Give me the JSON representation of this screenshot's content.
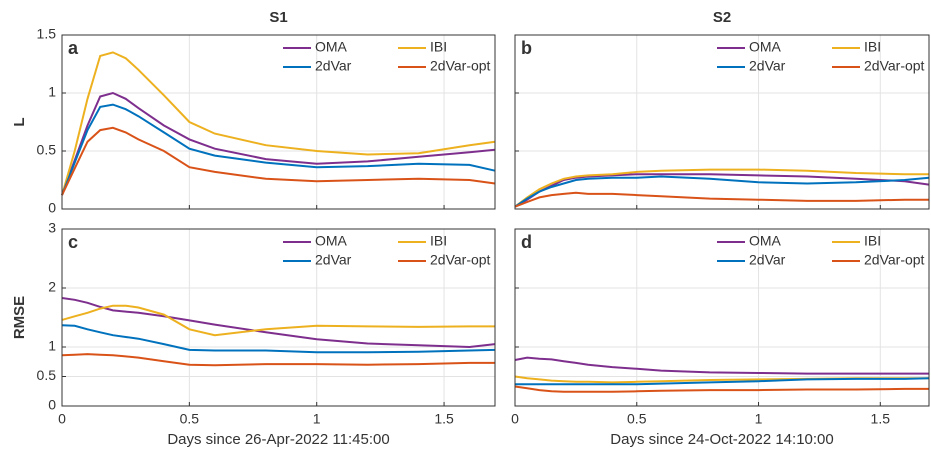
{
  "chart_data": [
    {
      "type": "line",
      "title": "S1",
      "panel_label": "a",
      "ylabel": "L",
      "x": [
        0,
        0.05,
        0.1,
        0.15,
        0.2,
        0.25,
        0.3,
        0.4,
        0.5,
        0.6,
        0.8,
        1.0,
        1.2,
        1.4,
        1.6,
        1.7
      ],
      "series": [
        {
          "name": "OMA",
          "color": "#7E2F8E",
          "values": [
            0.12,
            0.42,
            0.72,
            0.97,
            1.0,
            0.95,
            0.87,
            0.72,
            0.6,
            0.52,
            0.43,
            0.39,
            0.41,
            0.45,
            0.49,
            0.51
          ]
        },
        {
          "name": "IBI",
          "color": "#EDB120",
          "values": [
            0.12,
            0.5,
            0.95,
            1.32,
            1.35,
            1.3,
            1.2,
            0.98,
            0.75,
            0.65,
            0.55,
            0.5,
            0.47,
            0.48,
            0.55,
            0.58
          ]
        },
        {
          "name": "2dVar",
          "color": "#0072BD",
          "values": [
            0.12,
            0.4,
            0.68,
            0.88,
            0.9,
            0.86,
            0.8,
            0.66,
            0.52,
            0.46,
            0.4,
            0.36,
            0.37,
            0.39,
            0.38,
            0.33
          ]
        },
        {
          "name": "2dVar-opt",
          "color": "#D95319",
          "values": [
            0.12,
            0.35,
            0.58,
            0.68,
            0.7,
            0.66,
            0.6,
            0.5,
            0.36,
            0.32,
            0.26,
            0.24,
            0.25,
            0.26,
            0.25,
            0.22
          ]
        }
      ],
      "xlim": [
        0,
        1.7
      ],
      "ylim": [
        0,
        1.5
      ],
      "xticks": [
        0,
        0.5,
        1,
        1.5
      ],
      "yticks": [
        0,
        0.5,
        1,
        1.5
      ],
      "grid": true,
      "legend": "upper right",
      "show_xtick_labels": false,
      "show_ytick_labels": true
    },
    {
      "type": "line",
      "title": "S2",
      "panel_label": "b",
      "x": [
        0,
        0.05,
        0.1,
        0.15,
        0.2,
        0.25,
        0.3,
        0.4,
        0.5,
        0.6,
        0.8,
        1.0,
        1.2,
        1.4,
        1.6,
        1.7
      ],
      "series": [
        {
          "name": "OMA",
          "color": "#7E2F8E",
          "values": [
            0.02,
            0.08,
            0.15,
            0.2,
            0.25,
            0.27,
            0.28,
            0.29,
            0.3,
            0.3,
            0.3,
            0.29,
            0.28,
            0.26,
            0.24,
            0.21
          ]
        },
        {
          "name": "IBI",
          "color": "#EDB120",
          "values": [
            0.02,
            0.1,
            0.17,
            0.22,
            0.26,
            0.28,
            0.29,
            0.3,
            0.32,
            0.33,
            0.34,
            0.34,
            0.33,
            0.31,
            0.3,
            0.3
          ]
        },
        {
          "name": "2dVar",
          "color": "#0072BD",
          "values": [
            0.02,
            0.09,
            0.15,
            0.19,
            0.22,
            0.25,
            0.26,
            0.27,
            0.27,
            0.28,
            0.26,
            0.23,
            0.22,
            0.23,
            0.25,
            0.27
          ]
        },
        {
          "name": "2dVar-opt",
          "color": "#D95319",
          "values": [
            0.02,
            0.06,
            0.1,
            0.12,
            0.13,
            0.14,
            0.13,
            0.13,
            0.12,
            0.11,
            0.09,
            0.08,
            0.07,
            0.07,
            0.08,
            0.08
          ]
        }
      ],
      "xlim": [
        0,
        1.7
      ],
      "ylim": [
        0,
        1.5
      ],
      "xticks": [
        0,
        0.5,
        1,
        1.5
      ],
      "yticks": [
        0,
        0.5,
        1,
        1.5
      ],
      "grid": true,
      "legend": "upper right",
      "show_xtick_labels": false,
      "show_ytick_labels": false
    },
    {
      "type": "line",
      "panel_label": "c",
      "ylabel": "RMSE",
      "xlabel": "Days since 26-Apr-2022 11:45:00",
      "x": [
        0,
        0.05,
        0.1,
        0.15,
        0.2,
        0.25,
        0.3,
        0.4,
        0.5,
        0.6,
        0.8,
        1.0,
        1.2,
        1.4,
        1.6,
        1.7
      ],
      "series": [
        {
          "name": "OMA",
          "color": "#7E2F8E",
          "values": [
            1.83,
            1.8,
            1.75,
            1.68,
            1.62,
            1.6,
            1.58,
            1.52,
            1.45,
            1.38,
            1.25,
            1.13,
            1.06,
            1.03,
            1.0,
            1.05
          ]
        },
        {
          "name": "IBI",
          "color": "#EDB120",
          "values": [
            1.46,
            1.52,
            1.58,
            1.65,
            1.7,
            1.7,
            1.67,
            1.55,
            1.3,
            1.2,
            1.3,
            1.36,
            1.35,
            1.34,
            1.35,
            1.35
          ]
        },
        {
          "name": "2dVar",
          "color": "#0072BD",
          "values": [
            1.37,
            1.36,
            1.3,
            1.25,
            1.2,
            1.17,
            1.14,
            1.05,
            0.95,
            0.94,
            0.94,
            0.91,
            0.91,
            0.92,
            0.94,
            0.95
          ]
        },
        {
          "name": "2dVar-opt",
          "color": "#D95319",
          "values": [
            0.86,
            0.87,
            0.88,
            0.87,
            0.86,
            0.84,
            0.82,
            0.76,
            0.7,
            0.69,
            0.71,
            0.71,
            0.7,
            0.71,
            0.73,
            0.73
          ]
        }
      ],
      "xlim": [
        0,
        1.7
      ],
      "ylim": [
        0,
        3
      ],
      "xticks": [
        0,
        0.5,
        1,
        1.5
      ],
      "yticks": [
        0,
        0.5,
        1,
        2,
        3
      ],
      "grid": true,
      "legend": "upper right",
      "show_xtick_labels": true,
      "show_ytick_labels": true
    },
    {
      "type": "line",
      "panel_label": "d",
      "xlabel": "Days since 24-Oct-2022 14:10:00",
      "x": [
        0,
        0.05,
        0.1,
        0.15,
        0.2,
        0.25,
        0.3,
        0.4,
        0.5,
        0.6,
        0.8,
        1.0,
        1.2,
        1.4,
        1.6,
        1.7
      ],
      "series": [
        {
          "name": "OMA",
          "color": "#7E2F8E",
          "values": [
            0.78,
            0.82,
            0.8,
            0.79,
            0.76,
            0.73,
            0.7,
            0.66,
            0.63,
            0.6,
            0.57,
            0.56,
            0.55,
            0.55,
            0.55,
            0.55
          ]
        },
        {
          "name": "IBI",
          "color": "#EDB120",
          "values": [
            0.5,
            0.47,
            0.45,
            0.43,
            0.42,
            0.41,
            0.41,
            0.4,
            0.41,
            0.42,
            0.44,
            0.45,
            0.46,
            0.47,
            0.47,
            0.47
          ]
        },
        {
          "name": "2dVar",
          "color": "#0072BD",
          "values": [
            0.37,
            0.37,
            0.37,
            0.37,
            0.37,
            0.37,
            0.37,
            0.37,
            0.37,
            0.38,
            0.4,
            0.42,
            0.45,
            0.46,
            0.46,
            0.47
          ]
        },
        {
          "name": "2dVar-opt",
          "color": "#D95319",
          "values": [
            0.33,
            0.3,
            0.27,
            0.25,
            0.24,
            0.24,
            0.24,
            0.24,
            0.25,
            0.26,
            0.27,
            0.27,
            0.28,
            0.28,
            0.29,
            0.29
          ]
        }
      ],
      "xlim": [
        0,
        1.7
      ],
      "ylim": [
        0,
        3
      ],
      "xticks": [
        0,
        0.5,
        1,
        1.5
      ],
      "yticks": [
        0,
        0.5,
        1,
        2,
        3
      ],
      "grid": true,
      "legend": "upper right",
      "show_xtick_labels": true,
      "show_ytick_labels": false
    }
  ]
}
